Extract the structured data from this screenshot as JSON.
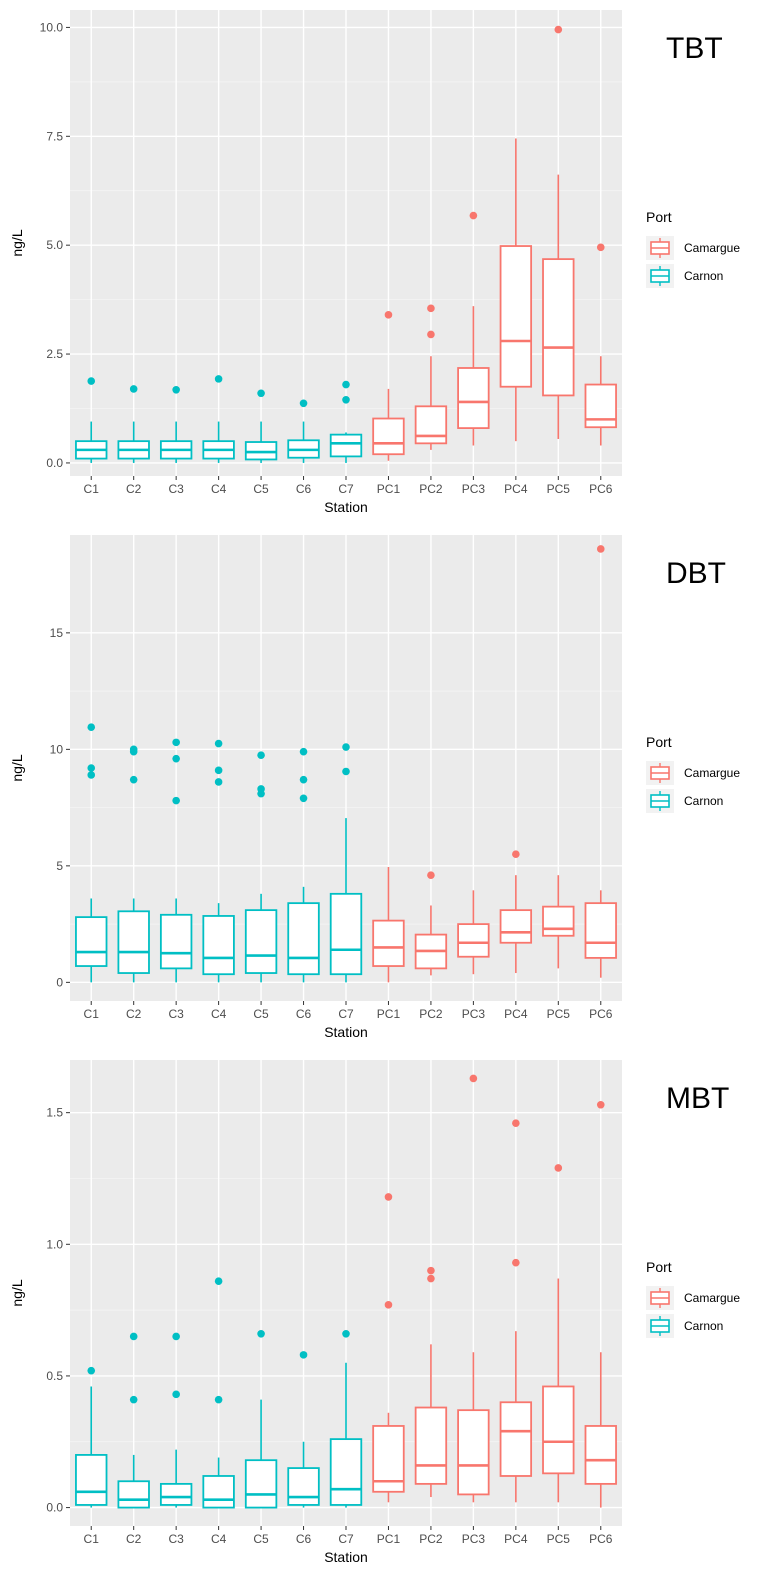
{
  "chart_data": [
    {
      "type": "box",
      "title": "TBT",
      "xlabel": "Station",
      "ylabel": "ng/L",
      "ylim": [
        -0.3,
        10.4
      ],
      "yticks": [
        0.0,
        2.5,
        5.0,
        7.5,
        10.0
      ],
      "ytick_labels": [
        "0.0",
        "2.5",
        "5.0",
        "7.5",
        "10.0"
      ],
      "legend": {
        "title": "Port",
        "entries": [
          "Camargue",
          "Carnon"
        ],
        "colors": [
          "#F8766D",
          "#00BFC4"
        ],
        "position": "right"
      },
      "grid": true,
      "categories": [
        "C1",
        "C2",
        "C3",
        "C4",
        "C5",
        "C6",
        "C7",
        "PC1",
        "PC2",
        "PC3",
        "PC4",
        "PC5",
        "PC6"
      ],
      "boxes": [
        {
          "station": "C1",
          "port": "Carnon",
          "min": 0.0,
          "q1": 0.1,
          "median": 0.3,
          "q3": 0.5,
          "max": 0.95,
          "outliers": [
            1.88
          ]
        },
        {
          "station": "C2",
          "port": "Carnon",
          "min": 0.0,
          "q1": 0.1,
          "median": 0.3,
          "q3": 0.5,
          "max": 0.95,
          "outliers": [
            1.7
          ]
        },
        {
          "station": "C3",
          "port": "Carnon",
          "min": 0.0,
          "q1": 0.1,
          "median": 0.3,
          "q3": 0.5,
          "max": 0.95,
          "outliers": [
            1.68
          ]
        },
        {
          "station": "C4",
          "port": "Carnon",
          "min": 0.0,
          "q1": 0.1,
          "median": 0.3,
          "q3": 0.5,
          "max": 0.95,
          "outliers": [
            1.93
          ]
        },
        {
          "station": "C5",
          "port": "Carnon",
          "min": 0.0,
          "q1": 0.08,
          "median": 0.25,
          "q3": 0.48,
          "max": 0.95,
          "outliers": [
            1.6
          ]
        },
        {
          "station": "C6",
          "port": "Carnon",
          "min": 0.0,
          "q1": 0.12,
          "median": 0.3,
          "q3": 0.52,
          "max": 0.95,
          "outliers": [
            1.37
          ]
        },
        {
          "station": "C7",
          "port": "Carnon",
          "min": 0.0,
          "q1": 0.15,
          "median": 0.45,
          "q3": 0.65,
          "max": 0.7,
          "outliers": [
            1.45,
            1.8
          ]
        },
        {
          "station": "PC1",
          "port": "Camargue",
          "min": 0.05,
          "q1": 0.2,
          "median": 0.45,
          "q3": 1.02,
          "max": 1.7,
          "outliers": [
            3.4
          ]
        },
        {
          "station": "PC2",
          "port": "Camargue",
          "min": 0.3,
          "q1": 0.45,
          "median": 0.62,
          "q3": 1.3,
          "max": 2.45,
          "outliers": [
            2.95,
            3.55
          ]
        },
        {
          "station": "PC3",
          "port": "Camargue",
          "min": 0.4,
          "q1": 0.8,
          "median": 1.4,
          "q3": 2.18,
          "max": 3.6,
          "outliers": [
            5.68
          ]
        },
        {
          "station": "PC4",
          "port": "Camargue",
          "min": 0.5,
          "q1": 1.75,
          "median": 2.8,
          "q3": 4.98,
          "max": 7.45,
          "outliers": []
        },
        {
          "station": "PC5",
          "port": "Camargue",
          "min": 0.55,
          "q1": 1.55,
          "median": 2.65,
          "q3": 4.68,
          "max": 6.62,
          "outliers": [
            9.95
          ]
        },
        {
          "station": "PC6",
          "port": "Camargue",
          "min": 0.4,
          "q1": 0.82,
          "median": 1.0,
          "q3": 1.8,
          "max": 2.45,
          "outliers": [
            4.95
          ]
        }
      ]
    },
    {
      "type": "box",
      "title": "DBT",
      "xlabel": "Station",
      "ylabel": "ng/L",
      "ylim": [
        -0.8,
        19.2
      ],
      "yticks": [
        0,
        5,
        10,
        15
      ],
      "ytick_labels": [
        "0",
        "5",
        "10",
        "15"
      ],
      "legend": {
        "title": "Port",
        "entries": [
          "Camargue",
          "Carnon"
        ],
        "colors": [
          "#F8766D",
          "#00BFC4"
        ],
        "position": "right"
      },
      "grid": true,
      "categories": [
        "C1",
        "C2",
        "C3",
        "C4",
        "C5",
        "C6",
        "C7",
        "PC1",
        "PC2",
        "PC3",
        "PC4",
        "PC5",
        "PC6"
      ],
      "boxes": [
        {
          "station": "C1",
          "port": "Carnon",
          "min": 0.0,
          "q1": 0.7,
          "median": 1.3,
          "q3": 2.8,
          "max": 3.6,
          "outliers": [
            8.9,
            9.2,
            10.95
          ]
        },
        {
          "station": "C2",
          "port": "Carnon",
          "min": 0.0,
          "q1": 0.4,
          "median": 1.3,
          "q3": 3.05,
          "max": 3.6,
          "outliers": [
            8.7,
            9.9,
            10.0
          ]
        },
        {
          "station": "C3",
          "port": "Carnon",
          "min": 0.0,
          "q1": 0.6,
          "median": 1.25,
          "q3": 2.9,
          "max": 3.6,
          "outliers": [
            7.8,
            9.6,
            10.3
          ]
        },
        {
          "station": "C4",
          "port": "Carnon",
          "min": 0.0,
          "q1": 0.35,
          "median": 1.05,
          "q3": 2.85,
          "max": 3.4,
          "outliers": [
            8.6,
            9.1,
            10.25
          ]
        },
        {
          "station": "C5",
          "port": "Carnon",
          "min": 0.0,
          "q1": 0.4,
          "median": 1.15,
          "q3": 3.1,
          "max": 3.8,
          "outliers": [
            8.1,
            8.3,
            9.75
          ]
        },
        {
          "station": "C6",
          "port": "Carnon",
          "min": 0.0,
          "q1": 0.35,
          "median": 1.05,
          "q3": 3.4,
          "max": 4.1,
          "outliers": [
            7.9,
            8.7,
            9.9
          ]
        },
        {
          "station": "C7",
          "port": "Carnon",
          "min": 0.0,
          "q1": 0.35,
          "median": 1.4,
          "q3": 3.8,
          "max": 7.05,
          "outliers": [
            9.05,
            10.1
          ]
        },
        {
          "station": "PC1",
          "port": "Camargue",
          "min": 0.0,
          "q1": 0.7,
          "median": 1.5,
          "q3": 2.65,
          "max": 4.95,
          "outliers": []
        },
        {
          "station": "PC2",
          "port": "Camargue",
          "min": 0.3,
          "q1": 0.6,
          "median": 1.35,
          "q3": 2.05,
          "max": 3.3,
          "outliers": [
            4.6
          ]
        },
        {
          "station": "PC3",
          "port": "Camargue",
          "min": 0.35,
          "q1": 1.1,
          "median": 1.7,
          "q3": 2.5,
          "max": 3.95,
          "outliers": []
        },
        {
          "station": "PC4",
          "port": "Camargue",
          "min": 0.4,
          "q1": 1.7,
          "median": 2.15,
          "q3": 3.1,
          "max": 4.6,
          "outliers": [
            5.5
          ]
        },
        {
          "station": "PC5",
          "port": "Camargue",
          "min": 0.6,
          "q1": 2.0,
          "median": 2.3,
          "q3": 3.25,
          "max": 4.6,
          "outliers": []
        },
        {
          "station": "PC6",
          "port": "Camargue",
          "min": 0.2,
          "q1": 1.05,
          "median": 1.7,
          "q3": 3.4,
          "max": 3.95,
          "outliers": [
            18.6
          ]
        }
      ]
    },
    {
      "type": "box",
      "title": "MBT",
      "xlabel": "Station",
      "ylabel": "ng/L",
      "ylim": [
        -0.07,
        1.7
      ],
      "yticks": [
        0.0,
        0.5,
        1.0,
        1.5
      ],
      "ytick_labels": [
        "0.0",
        "0.5",
        "1.0",
        "1.5"
      ],
      "legend": {
        "title": "Port",
        "entries": [
          "Camargue",
          "Carnon"
        ],
        "colors": [
          "#F8766D",
          "#00BFC4"
        ],
        "position": "right"
      },
      "grid": true,
      "categories": [
        "C1",
        "C2",
        "C3",
        "C4",
        "C5",
        "C6",
        "C7",
        "PC1",
        "PC2",
        "PC3",
        "PC4",
        "PC5",
        "PC6"
      ],
      "boxes": [
        {
          "station": "C1",
          "port": "Carnon",
          "min": 0.0,
          "q1": 0.01,
          "median": 0.06,
          "q3": 0.2,
          "max": 0.46,
          "outliers": [
            0.52
          ]
        },
        {
          "station": "C2",
          "port": "Carnon",
          "min": 0.0,
          "q1": 0.0,
          "median": 0.03,
          "q3": 0.1,
          "max": 0.2,
          "outliers": [
            0.41,
            0.65
          ]
        },
        {
          "station": "C3",
          "port": "Carnon",
          "min": 0.0,
          "q1": 0.01,
          "median": 0.04,
          "q3": 0.09,
          "max": 0.22,
          "outliers": [
            0.43,
            0.65
          ]
        },
        {
          "station": "C4",
          "port": "Carnon",
          "min": 0.0,
          "q1": 0.0,
          "median": 0.03,
          "q3": 0.12,
          "max": 0.19,
          "outliers": [
            0.41,
            0.86
          ]
        },
        {
          "station": "C5",
          "port": "Carnon",
          "min": 0.0,
          "q1": 0.0,
          "median": 0.05,
          "q3": 0.18,
          "max": 0.41,
          "outliers": [
            0.66
          ]
        },
        {
          "station": "C6",
          "port": "Carnon",
          "min": 0.0,
          "q1": 0.01,
          "median": 0.04,
          "q3": 0.15,
          "max": 0.25,
          "outliers": [
            0.58
          ]
        },
        {
          "station": "C7",
          "port": "Carnon",
          "min": 0.0,
          "q1": 0.01,
          "median": 0.07,
          "q3": 0.26,
          "max": 0.55,
          "outliers": [
            0.66
          ]
        },
        {
          "station": "PC1",
          "port": "Camargue",
          "min": 0.02,
          "q1": 0.06,
          "median": 0.1,
          "q3": 0.31,
          "max": 0.36,
          "outliers": [
            0.77,
            1.18
          ]
        },
        {
          "station": "PC2",
          "port": "Camargue",
          "min": 0.04,
          "q1": 0.09,
          "median": 0.16,
          "q3": 0.38,
          "max": 0.62,
          "outliers": [
            0.87,
            0.9
          ]
        },
        {
          "station": "PC3",
          "port": "Camargue",
          "min": 0.02,
          "q1": 0.05,
          "median": 0.16,
          "q3": 0.37,
          "max": 0.59,
          "outliers": [
            1.63
          ]
        },
        {
          "station": "PC4",
          "port": "Camargue",
          "min": 0.02,
          "q1": 0.12,
          "median": 0.29,
          "q3": 0.4,
          "max": 0.67,
          "outliers": [
            0.93,
            1.46
          ]
        },
        {
          "station": "PC5",
          "port": "Camargue",
          "min": 0.02,
          "q1": 0.13,
          "median": 0.25,
          "q3": 0.46,
          "max": 0.87,
          "outliers": [
            1.29
          ]
        },
        {
          "station": "PC6",
          "port": "Camargue",
          "min": 0.0,
          "q1": 0.09,
          "median": 0.18,
          "q3": 0.31,
          "max": 0.59,
          "outliers": [
            1.53
          ]
        }
      ]
    }
  ]
}
